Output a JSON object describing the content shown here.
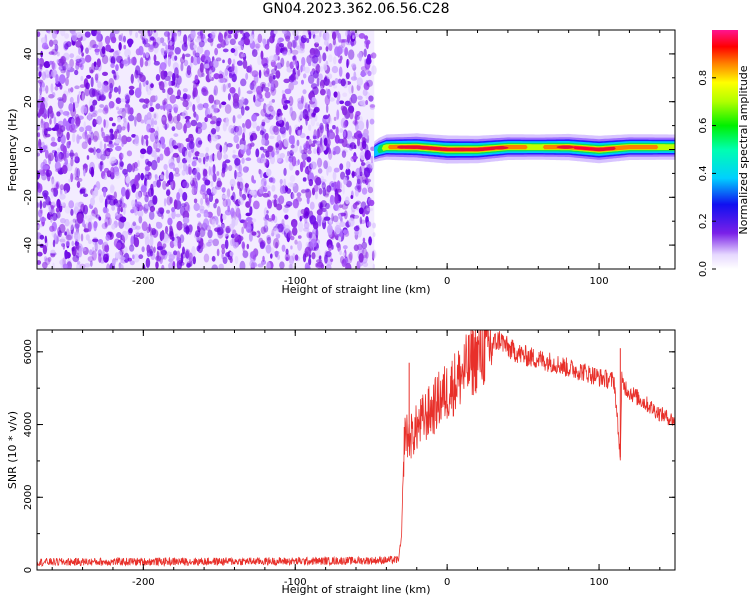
{
  "title": "GN04.2023.362.06.56.C28",
  "colors": {
    "snr_line": "#e8302a",
    "spectro_low": "#6a00e0",
    "spectro_mid": "#00e000",
    "spectro_high": "#e81030"
  },
  "chart_data": [
    {
      "type": "heatmap",
      "title": "",
      "xlabel": "Height of straight line (km)",
      "ylabel": "Frequency (Hz)",
      "xlim": [
        -270,
        150
      ],
      "ylim": [
        -50,
        50
      ],
      "xticks": [
        -200,
        -100,
        0,
        100
      ],
      "xtick_labels": [
        "-200",
        "-100",
        "0",
        "100"
      ],
      "yticks": [
        -40,
        -20,
        0,
        20,
        40
      ],
      "ytick_labels": [
        "-40",
        "-20",
        "0",
        "20",
        "40"
      ],
      "colorbar": {
        "label": "Normalized spectral amplitude",
        "range": [
          0,
          1
        ],
        "ticks": [
          0.0,
          0.2,
          0.4,
          0.6,
          0.8
        ],
        "tick_labels": [
          "0.0",
          "0.2",
          "0.4",
          "0.6",
          "0.8"
        ],
        "colormap": "hsv-like (violet-blue-cyan-green-yellow-red-magenta)"
      },
      "noise_region_x": [
        -270,
        -48
      ],
      "signal_band": {
        "x": [
          -48,
          -45,
          -40,
          -30,
          -20,
          0,
          20,
          40,
          60,
          80,
          100,
          120,
          150
        ],
        "freq": [
          -1,
          0,
          1,
          1,
          1,
          0,
          0,
          1,
          1,
          1,
          0,
          1,
          1
        ],
        "peak_amplitude": [
          0.3,
          0.5,
          0.7,
          0.8,
          0.9,
          0.95,
          0.9,
          0.75,
          0.7,
          0.8,
          0.9,
          0.75,
          0.7
        ]
      },
      "grid": false
    },
    {
      "type": "line",
      "title": "",
      "xlabel": "Height of straight line (km)",
      "ylabel": "SNR (10 * v/v)",
      "xlim": [
        -270,
        150
      ],
      "ylim": [
        0,
        6600
      ],
      "xticks": [
        -200,
        -100,
        0,
        100
      ],
      "xtick_labels": [
        "-200",
        "-100",
        "0",
        "100"
      ],
      "yticks": [
        0,
        2000,
        4000,
        6000
      ],
      "ytick_labels": [
        "0",
        "2000",
        "4000",
        "6000"
      ],
      "series": [
        {
          "x": [
            -270,
            -200,
            -100,
            -50,
            -32,
            -30,
            -28,
            -25,
            -20,
            -15,
            -10,
            -5,
            0,
            10,
            20,
            30,
            35,
            40,
            50,
            60,
            70,
            80,
            90,
            100,
            110,
            114,
            115,
            116,
            120,
            130,
            140,
            150
          ],
          "y": [
            220,
            230,
            240,
            260,
            280,
            900,
            3800,
            3600,
            3900,
            4200,
            4400,
            4700,
            4900,
            5400,
            5900,
            6200,
            6350,
            6100,
            5900,
            5800,
            5700,
            5550,
            5450,
            5300,
            5200,
            3100,
            5200,
            5100,
            4900,
            4600,
            4300,
            4100
          ]
        }
      ],
      "annotations": [
        {
          "x": -25,
          "y": 5700,
          "note": "spike"
        },
        {
          "x": 114,
          "y": 6100,
          "note": "spike"
        }
      ],
      "grid": false
    }
  ]
}
